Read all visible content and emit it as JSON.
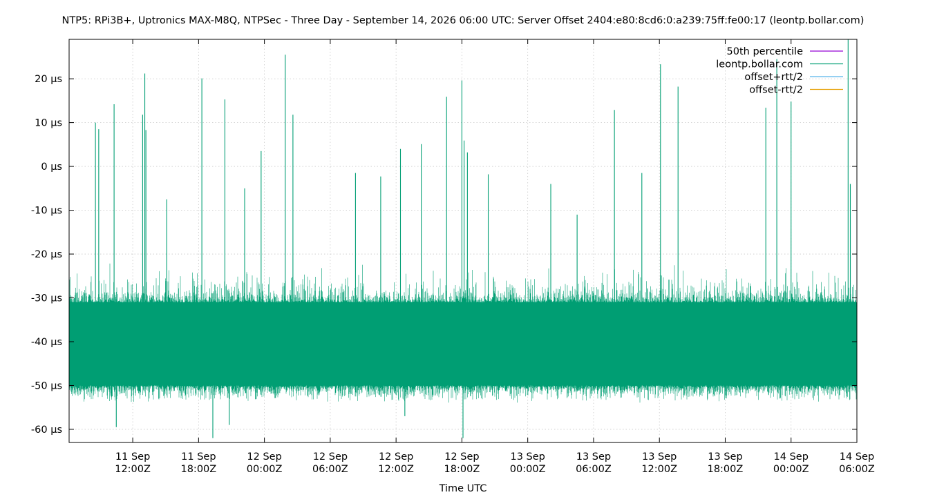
{
  "chart_data": {
    "type": "line",
    "title": "NTP5: RPi3B+, Uptronics MAX-M8Q, NTPSec - Three Day - September 14, 2026 06:00 UTC: Server Offset 2404:e80:8cd6:0:a239:75ff:fe00:17 (leontp.bollar.com)",
    "xlabel": "Time UTC",
    "ylabel": "",
    "x_range_hours": [
      -65.8,
      6.0
    ],
    "ylim": [
      -63,
      29
    ],
    "grid": true,
    "legend_position": "top-right",
    "y_ticks": [
      {
        "value": 20,
        "label": "20 µs"
      },
      {
        "value": 10,
        "label": "10 µs"
      },
      {
        "value": 0,
        "label": "0 µs"
      },
      {
        "value": -10,
        "label": "-10 µs"
      },
      {
        "value": -20,
        "label": "-20 µs"
      },
      {
        "value": -30,
        "label": "-30 µs"
      },
      {
        "value": -40,
        "label": "-40 µs"
      },
      {
        "value": -50,
        "label": "-50 µs"
      },
      {
        "value": -60,
        "label": "-60 µs"
      }
    ],
    "x_ticks": [
      {
        "value": -60,
        "line1": "11 Sep",
        "line2": "12:00Z"
      },
      {
        "value": -54,
        "line1": "11 Sep",
        "line2": "18:00Z"
      },
      {
        "value": -48,
        "line1": "12 Sep",
        "line2": "00:00Z"
      },
      {
        "value": -42,
        "line1": "12 Sep",
        "line2": "06:00Z"
      },
      {
        "value": -36,
        "line1": "12 Sep",
        "line2": "12:00Z"
      },
      {
        "value": -30,
        "line1": "12 Sep",
        "line2": "18:00Z"
      },
      {
        "value": -24,
        "line1": "13 Sep",
        "line2": "00:00Z"
      },
      {
        "value": -18,
        "line1": "13 Sep",
        "line2": "06:00Z"
      },
      {
        "value": -12,
        "line1": "13 Sep",
        "line2": "12:00Z"
      },
      {
        "value": -6,
        "line1": "13 Sep",
        "line2": "18:00Z"
      },
      {
        "value": 0,
        "line1": "14 Sep",
        "line2": "00:00Z"
      },
      {
        "value": 6,
        "line1": "14 Sep",
        "line2": "06:00Z"
      }
    ],
    "series": [
      {
        "name": "50th percentile",
        "color": "#9400d3",
        "values": []
      },
      {
        "name": "leontp.bollar.com",
        "color": "#009e73",
        "values": []
      },
      {
        "name": "offset+rtt/2",
        "color": "#56b4e9",
        "values": []
      },
      {
        "name": "offset-rtt/2",
        "color": "#e69f00",
        "values": []
      }
    ],
    "offset_band": {
      "median": -41,
      "typical_min": -50,
      "typical_max": -31
    },
    "spikes": [
      {
        "x": -63.4,
        "y": 10
      },
      {
        "x": -63.1,
        "y": 8.5
      },
      {
        "x": -61.7,
        "y": 14.2
      },
      {
        "x": -59.1,
        "y": 11.8
      },
      {
        "x": -58.9,
        "y": 21.2
      },
      {
        "x": -58.8,
        "y": 8.3
      },
      {
        "x": -56.9,
        "y": -7.5
      },
      {
        "x": -53.7,
        "y": 20.1
      },
      {
        "x": -51.6,
        "y": 15.3
      },
      {
        "x": -49.8,
        "y": -5
      },
      {
        "x": -48.3,
        "y": 3.5
      },
      {
        "x": -46.1,
        "y": 25.5
      },
      {
        "x": -45.4,
        "y": 11.8
      },
      {
        "x": -39.7,
        "y": -1.5
      },
      {
        "x": -37.4,
        "y": -2.3
      },
      {
        "x": -35.6,
        "y": 4
      },
      {
        "x": -33.7,
        "y": 5.1
      },
      {
        "x": -31.4,
        "y": 15.9
      },
      {
        "x": -30.0,
        "y": 19.6
      },
      {
        "x": -29.8,
        "y": 5.9
      },
      {
        "x": -29.5,
        "y": 3.2
      },
      {
        "x": -27.6,
        "y": -1.8
      },
      {
        "x": -21.9,
        "y": -4
      },
      {
        "x": -19.5,
        "y": -11
      },
      {
        "x": -16.1,
        "y": 12.9
      },
      {
        "x": -13.6,
        "y": -1.5
      },
      {
        "x": -11.9,
        "y": 23.3
      },
      {
        "x": -10.3,
        "y": 18.2
      },
      {
        "x": -2.3,
        "y": 13.4
      },
      {
        "x": -1.3,
        "y": 24.5
      },
      {
        "x": 0.0,
        "y": 14.8
      },
      {
        "x": 5.2,
        "y": 29
      },
      {
        "x": 5.4,
        "y": -4
      },
      {
        "x": -52.7,
        "y": -62
      },
      {
        "x": -29.9,
        "y": -62
      },
      {
        "x": -61.5,
        "y": -59.5
      },
      {
        "x": -51.2,
        "y": -59
      },
      {
        "x": -35.2,
        "y": -57
      }
    ]
  }
}
